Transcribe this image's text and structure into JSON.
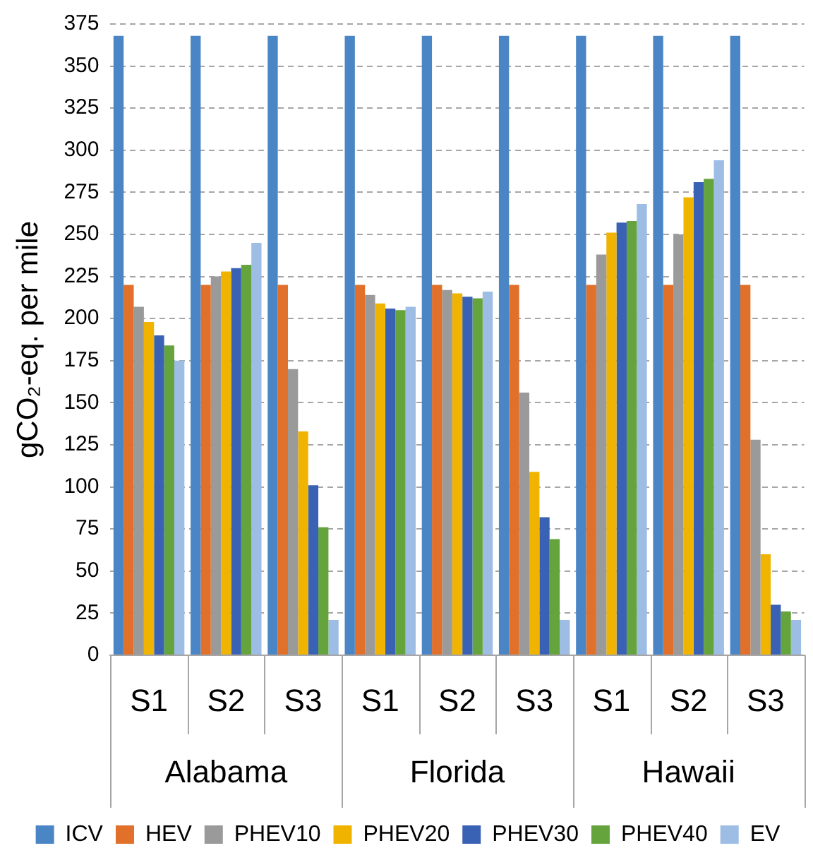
{
  "chart_data": {
    "type": "bar",
    "ylabel": "gCO₂-eq. per mile",
    "categories": [
      "S1",
      "S2",
      "S3",
      "S1",
      "S2",
      "S3",
      "S1",
      "S2",
      "S3"
    ],
    "annotations": [
      "Alabama",
      "Florida",
      "Hawaii"
    ],
    "series": [
      {
        "name": "ICV",
        "color": "#4a86c5",
        "values": [
          368,
          368,
          368,
          368,
          368,
          368,
          368,
          368,
          368
        ]
      },
      {
        "name": "HEV",
        "color": "#e0702a",
        "values": [
          220,
          220,
          220,
          220,
          220,
          220,
          220,
          220,
          220
        ]
      },
      {
        "name": "PHEV10",
        "color": "#9a9a9a",
        "values": [
          207,
          225,
          170,
          214,
          217,
          156,
          238,
          250,
          128
        ]
      },
      {
        "name": "PHEV20",
        "color": "#f0b400",
        "values": [
          198,
          228,
          133,
          209,
          215,
          109,
          251,
          272,
          60
        ]
      },
      {
        "name": "PHEV30",
        "color": "#3a62b4",
        "values": [
          190,
          230,
          101,
          206,
          213,
          82,
          257,
          281,
          30
        ]
      },
      {
        "name": "PHEV40",
        "color": "#65a33c",
        "values": [
          184,
          232,
          76,
          205,
          212,
          69,
          258,
          283,
          26
        ]
      },
      {
        "name": "EV",
        "color": "#9dbde4",
        "values": [
          175,
          245,
          21,
          207,
          216,
          21,
          268,
          294,
          21
        ]
      }
    ],
    "ylim": [
      0,
      375
    ],
    "yticks": [
      0,
      25,
      50,
      75,
      100,
      125,
      150,
      175,
      200,
      225,
      250,
      275,
      300,
      325,
      350,
      375
    ],
    "grid": "y",
    "legend": "bottom"
  }
}
